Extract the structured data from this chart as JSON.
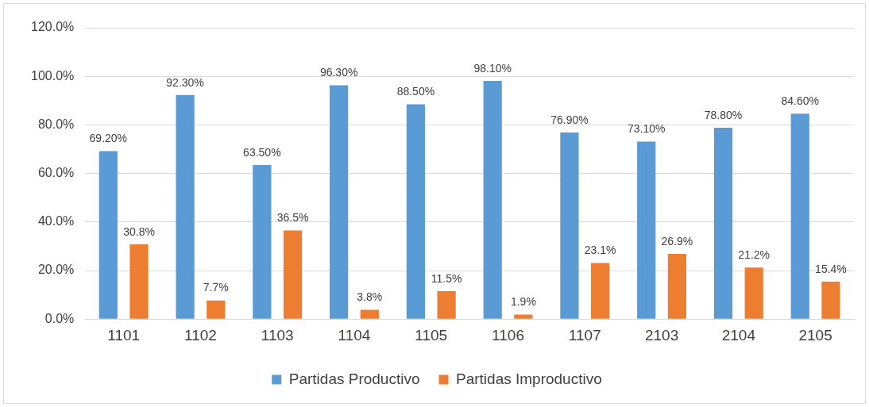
{
  "chart_data": {
    "type": "bar",
    "categories": [
      "1101",
      "1102",
      "1103",
      "1104",
      "1105",
      "1106",
      "1107",
      "2103",
      "2104",
      "2105"
    ],
    "series": [
      {
        "name": "Partidas Productivo",
        "color": "#5b9bd5",
        "values": [
          69.2,
          92.3,
          63.5,
          96.3,
          88.5,
          98.1,
          76.9,
          73.1,
          78.8,
          84.6
        ],
        "value_labels": [
          "69.20%",
          "92.30%",
          "63.50%",
          "96.30%",
          "88.50%",
          "98.10%",
          "76.90%",
          "73.10%",
          "78.80%",
          "84.60%"
        ]
      },
      {
        "name": "Partidas Improductivo",
        "color": "#ed7d31",
        "values": [
          30.8,
          7.7,
          36.5,
          3.8,
          11.5,
          1.9,
          23.1,
          26.9,
          21.2,
          15.4
        ],
        "value_labels": [
          "30.8%",
          "7.7%",
          "36.5%",
          "3.8%",
          "11.5%",
          "1.9%",
          "23.1%",
          "26.9%",
          "21.2%",
          "15.4%"
        ]
      }
    ],
    "ylim": [
      0,
      120
    ],
    "yticks": [
      {
        "value": 0,
        "label": "0.0%"
      },
      {
        "value": 20,
        "label": "20.0%"
      },
      {
        "value": 40,
        "label": "40.0%"
      },
      {
        "value": 60,
        "label": "60.0%"
      },
      {
        "value": 80,
        "label": "80.0%"
      },
      {
        "value": 100,
        "label": "100.0%"
      },
      {
        "value": 120,
        "label": "120.0%"
      }
    ],
    "grid": "y",
    "legend": "bottom"
  }
}
